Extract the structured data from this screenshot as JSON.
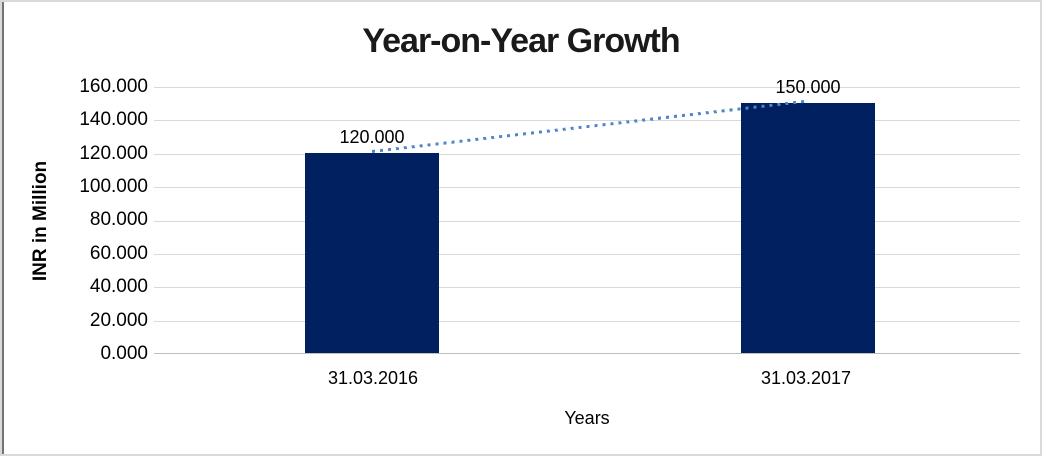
{
  "chart_data": {
    "type": "bar",
    "title": "Year-on-Year Growth",
    "categories": [
      "31.03.2016",
      "31.03.2017"
    ],
    "values": [
      120,
      150
    ],
    "data_labels": [
      "120.000",
      "150.000"
    ],
    "xlabel": "Years",
    "ylabel": "INR in Million",
    "ylim": [
      0,
      160
    ],
    "ytick_step": 20,
    "yticks": [
      "160.000",
      "140.000",
      "120.000",
      "100.000",
      "80.000",
      "60.000",
      "40.000",
      "20.000",
      "0.000"
    ],
    "grid": true,
    "legend": false,
    "trendline": {
      "style": "dotted",
      "from_value": 120,
      "to_value": 150
    },
    "colors": {
      "bar": "#002060",
      "trendline": "#4f87c6",
      "gridline": "#d9d9d9",
      "axis_line": "#bfbfbf",
      "text": "#000000",
      "frame_border": "#d9d9d9",
      "frame_left_edge": "#737373"
    }
  }
}
